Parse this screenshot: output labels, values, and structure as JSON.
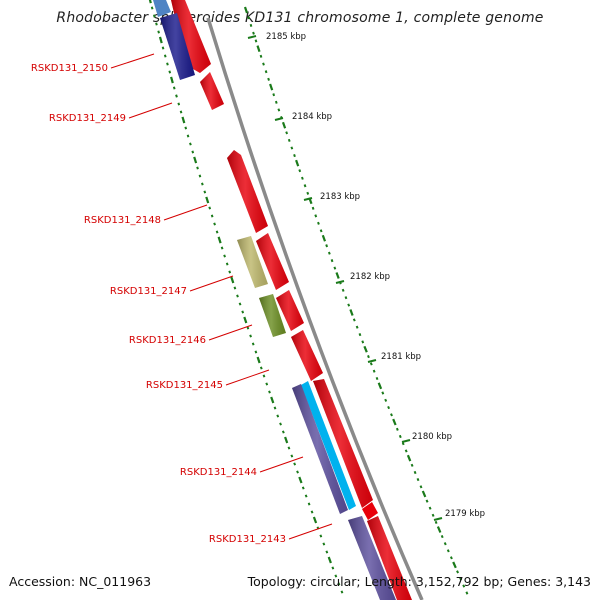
{
  "title": "Rhodobacter sphaeroides KD131 chromosome 1, complete genome",
  "footer": {
    "accession": "Accession: NC_011963",
    "topology": "Topology: circular; Length: 3,152,792 bp; Genes: 3,143"
  },
  "colors": {
    "backbone": "#8a8a8a",
    "label_red": "#d40000",
    "tick_green": "#1a7a1a",
    "gene_red": "#e8000b",
    "khaki": "#bdb76b",
    "olive": "#6b8e23",
    "cyan": "#00b2ee",
    "navy": "#1a1a8c",
    "slate": "#5c4f9e",
    "steel": "#4f84c4"
  },
  "kbp_labels": [
    "2185 kbp",
    "2184 kbp",
    "2183 kbp",
    "2182 kbp",
    "2181 kbp",
    "2180 kbp",
    "2179 kbp"
  ],
  "gene_labels": [
    "RSKD131_2150",
    "RSKD131_2149",
    "RSKD131_2148",
    "RSKD131_2147",
    "RSKD131_2146",
    "RSKD131_2145",
    "RSKD131_2144",
    "RSKD131_2143"
  ]
}
